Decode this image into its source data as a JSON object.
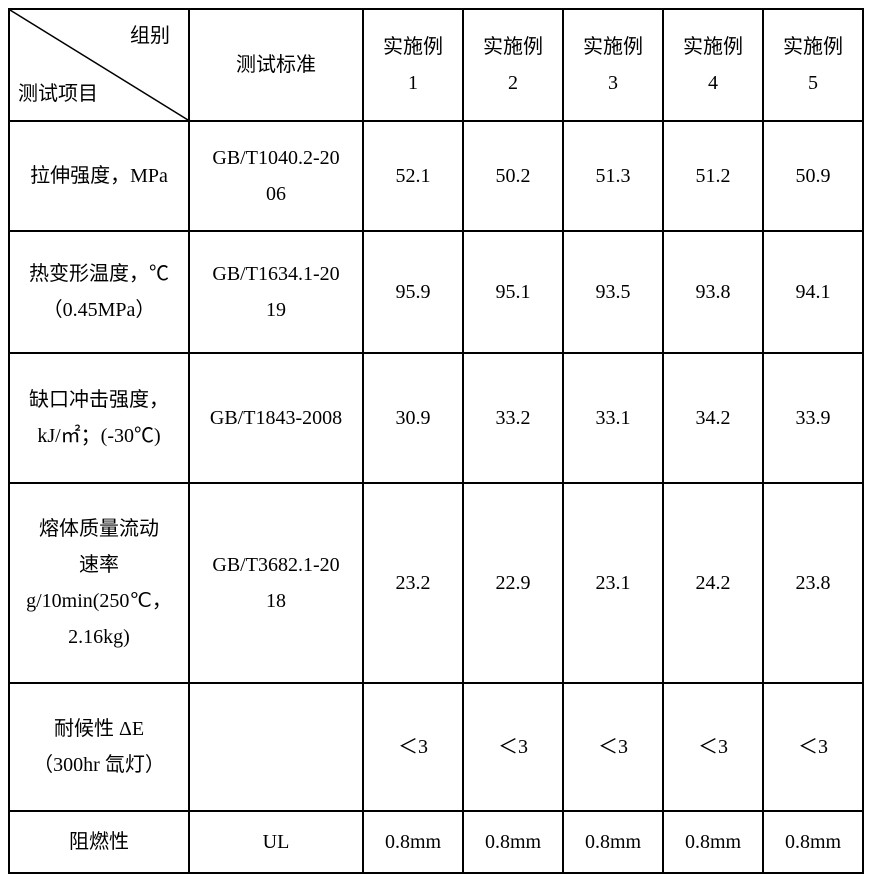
{
  "table": {
    "header": {
      "diag_top": "组别",
      "diag_bottom": "测试项目",
      "std_label": "测试标准",
      "groups": [
        "实施例",
        "实施例",
        "实施例",
        "实施例",
        "实施例"
      ],
      "group_nums": [
        "1",
        "2",
        "3",
        "4",
        "5"
      ]
    },
    "rows": [
      {
        "label_lines": [
          "拉伸强度，MPa"
        ],
        "std_lines": [
          "GB/T1040.2-20",
          "06"
        ],
        "values": [
          "52.1",
          "50.2",
          "51.3",
          "51.2",
          "50.9"
        ],
        "height": 100
      },
      {
        "label_lines": [
          "热变形温度，℃",
          "（0.45MPa）"
        ],
        "std_lines": [
          "GB/T1634.1-20",
          "19"
        ],
        "values": [
          "95.9",
          "95.1",
          "93.5",
          "93.8",
          "94.1"
        ],
        "height": 112
      },
      {
        "label_lines": [
          "缺口冲击强度，",
          "kJ/㎡；(-30℃)"
        ],
        "std_lines": [
          "GB/T1843-2008"
        ],
        "values": [
          "30.9",
          "33.2",
          "33.1",
          "34.2",
          "33.9"
        ],
        "height": 120
      },
      {
        "label_lines": [
          "熔体质量流动",
          "速率",
          "g/10min(250℃，",
          "2.16kg)"
        ],
        "std_lines": [
          "GB/T3682.1-20",
          "18"
        ],
        "values": [
          "23.2",
          "22.9",
          "23.1",
          "24.2",
          "23.8"
        ],
        "height": 190
      },
      {
        "label_lines": [
          "耐候性 ΔE",
          "（300hr 氙灯）"
        ],
        "std_lines": [
          ""
        ],
        "values": [
          "＜3",
          "＜3",
          "＜3",
          "＜3",
          "＜3"
        ],
        "height": 118
      },
      {
        "label_lines": [
          "阻燃性"
        ],
        "std_lines": [
          "UL"
        ],
        "values": [
          "0.8mm",
          "0.8mm",
          "0.8mm",
          "0.8mm",
          "0.8mm"
        ],
        "height": 52
      }
    ],
    "colors": {
      "border": "#000000",
      "background": "#ffffff",
      "text": "#000000"
    },
    "font": {
      "family": "SimSun",
      "size_pt": 15
    }
  }
}
